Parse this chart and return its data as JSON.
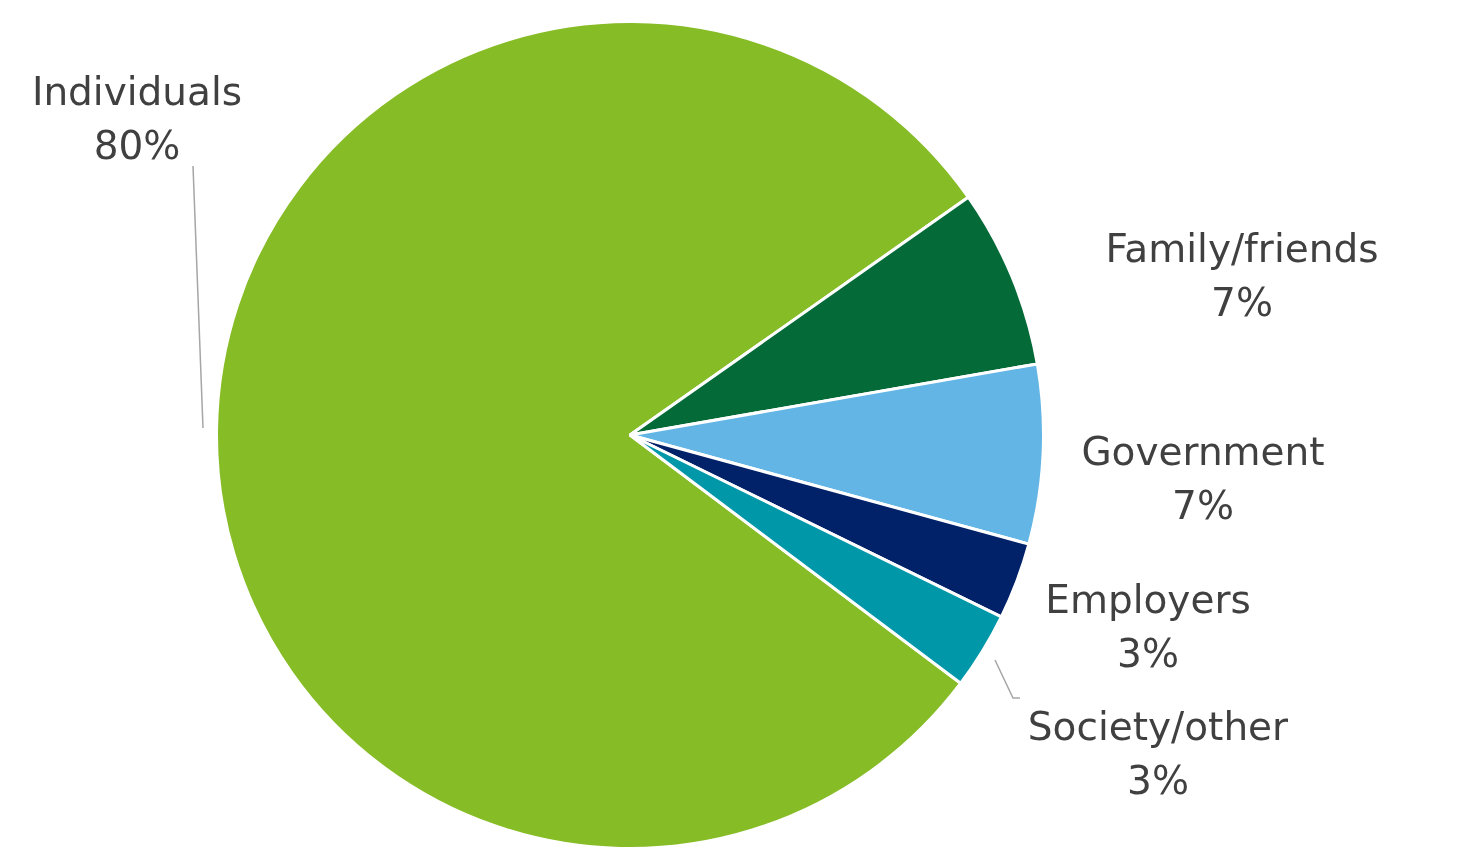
{
  "chart_data": {
    "type": "pie",
    "categories": [
      "Individuals",
      "Family/friends",
      "Government",
      "Employers",
      "Society/other"
    ],
    "values": [
      80,
      7,
      7,
      3,
      3
    ],
    "value_labels": [
      "80%",
      "7%",
      "7%",
      "3%",
      "3%"
    ],
    "colors": [
      "#86bc25",
      "#046a38",
      "#62b5e5",
      "#012169",
      "#0097a9"
    ],
    "legend": false
  }
}
